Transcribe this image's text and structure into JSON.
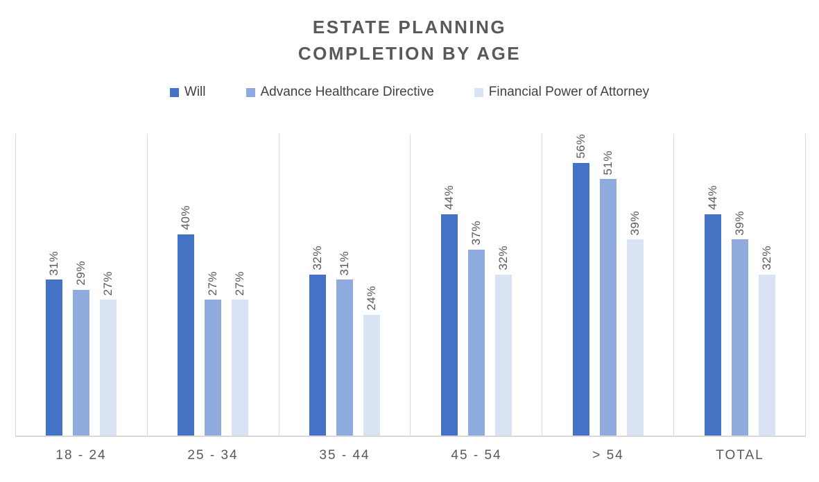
{
  "title": {
    "line1": "ESTATE PLANNING",
    "line2": "COMPLETION BY AGE"
  },
  "chart_data": {
    "type": "bar",
    "title": "ESTATE PLANNING COMPLETION BY AGE",
    "categories": [
      "18 - 24",
      "25 - 34",
      "35 - 44",
      "45 - 54",
      "> 54",
      "TOTAL"
    ],
    "series": [
      {
        "name": "Will",
        "color": "#4472C4",
        "values": [
          31,
          40,
          32,
          44,
          56,
          44
        ]
      },
      {
        "name": "Advance Healthcare Directive",
        "color": "#8FAADC",
        "values": [
          29,
          27,
          31,
          37,
          51,
          39
        ]
      },
      {
        "name": "Financial Power of Attorney",
        "color": "#DAE3F3",
        "values": [
          27,
          27,
          24,
          32,
          39,
          32
        ]
      }
    ],
    "value_suffix": "%",
    "ylim": [
      0,
      60
    ],
    "xlabel": "",
    "ylabel": "",
    "legend_position": "top",
    "grid": "vertical category separators only, no horizontal gridlines, no y-axis labels",
    "data_labels": "rotated 90deg, above each bar"
  },
  "colors": {
    "background": "#FFFFFF",
    "title_text": "#595959",
    "legend_text": "#404040",
    "data_label_text": "#595959",
    "category_label_text": "#595959",
    "gridline": "#D9D9D9",
    "axis_line": "#D9D9D9"
  }
}
